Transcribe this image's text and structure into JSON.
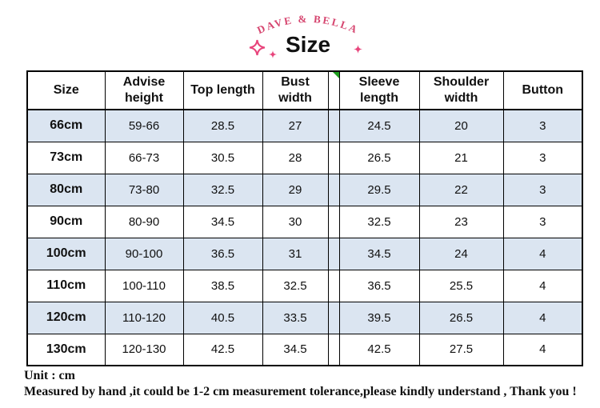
{
  "brand": {
    "arch_text": "DAVE & BELLA",
    "title": "Size"
  },
  "decor": {
    "sparkle_color": "#e8457c",
    "brand_pink": "#d6456f",
    "comment_marker_color": "#1e9e1e",
    "row_alt_blue": "#dbe5f1",
    "border_color": "#000000"
  },
  "table": {
    "columns": [
      "Size",
      "Advise height",
      "Top length",
      "Bust width",
      "Sleeve length",
      "Shoulder width",
      "Button"
    ],
    "rows": [
      [
        "66cm",
        "59-66",
        "28.5",
        "27",
        "24.5",
        "20",
        "3"
      ],
      [
        "73cm",
        "66-73",
        "30.5",
        "28",
        "26.5",
        "21",
        "3"
      ],
      [
        "80cm",
        "73-80",
        "32.5",
        "29",
        "29.5",
        "22",
        "3"
      ],
      [
        "90cm",
        "80-90",
        "34.5",
        "30",
        "32.5",
        "23",
        "3"
      ],
      [
        "100cm",
        "90-100",
        "36.5",
        "31",
        "34.5",
        "24",
        "4"
      ],
      [
        "110cm",
        "100-110",
        "38.5",
        "32.5",
        "36.5",
        "25.5",
        "4"
      ],
      [
        "120cm",
        "110-120",
        "40.5",
        "33.5",
        "39.5",
        "26.5",
        "4"
      ],
      [
        "130cm",
        "120-130",
        "42.5",
        "34.5",
        "42.5",
        "27.5",
        "4"
      ]
    ]
  },
  "footer": {
    "unit_label": "Unit : cm",
    "note": "Measured by hand ,it could be 1-2 cm measurement tolerance,please kindly understand , Thank you !"
  }
}
